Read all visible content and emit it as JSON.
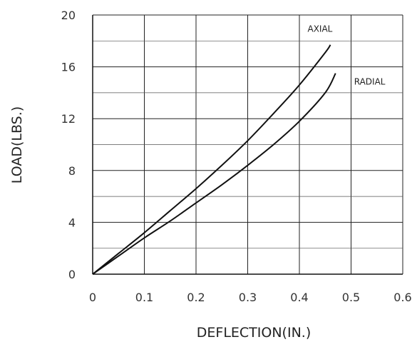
{
  "chart_data": {
    "type": "line",
    "xlabel": "DEFLECTION(IN.)",
    "ylabel": "LOAD(LBS.)",
    "xlim": [
      0,
      0.6
    ],
    "ylim": [
      0,
      20
    ],
    "x_ticks": [
      "0",
      "0.1",
      "0.2",
      "0.3",
      "0.4",
      "0.5",
      "0.6"
    ],
    "y_ticks": [
      "0",
      "4",
      "8",
      "12",
      "16",
      "20"
    ],
    "grid": true,
    "series": [
      {
        "name": "AXIAL",
        "color": "#111111",
        "x": [
          0,
          0.05,
          0.1,
          0.15,
          0.2,
          0.25,
          0.3,
          0.35,
          0.4,
          0.45,
          0.46
        ],
        "y": [
          0,
          1.6,
          3.2,
          4.9,
          6.6,
          8.4,
          10.3,
          12.4,
          14.6,
          17.1,
          17.7
        ]
      },
      {
        "name": "RADIAL",
        "color": "#111111",
        "x": [
          0,
          0.05,
          0.1,
          0.15,
          0.2,
          0.25,
          0.3,
          0.35,
          0.4,
          0.45,
          0.47
        ],
        "y": [
          0,
          1.4,
          2.8,
          4.1,
          5.5,
          6.9,
          8.4,
          10.0,
          11.8,
          14.0,
          15.5
        ]
      }
    ]
  }
}
